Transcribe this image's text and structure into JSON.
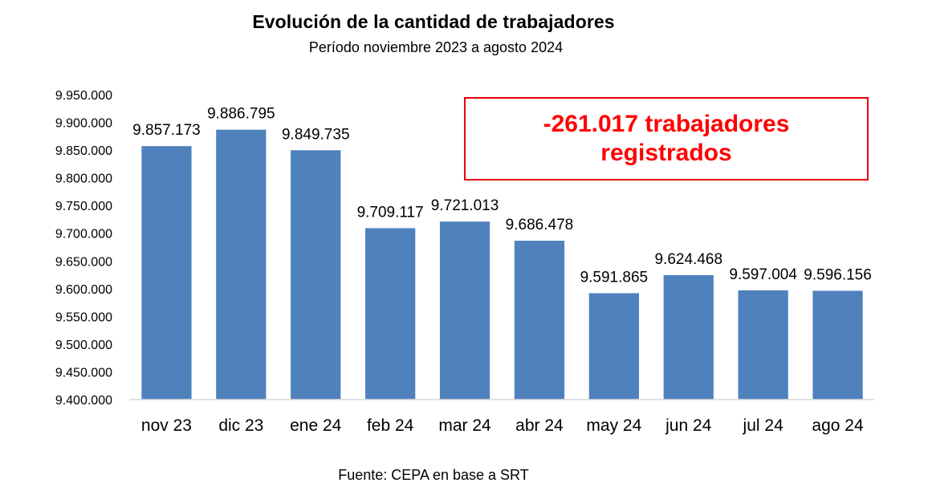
{
  "chart_data": {
    "type": "bar",
    "title": "Evolución de la cantidad de trabajadores",
    "subtitle": "Período noviembre 2023 a agosto 2024",
    "categories": [
      "nov 23",
      "dic 23",
      "ene 24",
      "feb 24",
      "mar 24",
      "abr 24",
      "may 24",
      "jun 24",
      "jul 24",
      "ago 24"
    ],
    "values": [
      9857173,
      9886795,
      9849735,
      9709117,
      9721013,
      9686478,
      9591865,
      9624468,
      9597004,
      9596156
    ],
    "data_labels": [
      "9.857.173",
      "9.886.795",
      "9.849.735",
      "9.709.117",
      "9.721.013",
      "9.686.478",
      "9.591.865",
      "9.624.468",
      "9.597.004",
      "9.596.156"
    ],
    "ylim": [
      9400000,
      9950000
    ],
    "yticks": [
      9400000,
      9450000,
      9500000,
      9550000,
      9600000,
      9650000,
      9700000,
      9750000,
      9800000,
      9850000,
      9900000,
      9950000
    ],
    "ytick_labels": [
      "9.400.000",
      "9.450.000",
      "9.500.000",
      "9.550.000",
      "9.600.000",
      "9.650.000",
      "9.700.000",
      "9.750.000",
      "9.800.000",
      "9.850.000",
      "9.900.000",
      "9.950.000"
    ],
    "xlabel": "",
    "ylabel": "",
    "grid": false,
    "legend": "none",
    "bar_color": "#4f81bd"
  },
  "annotation": {
    "text": "-261.017 trabajadores registrados",
    "color": "#ff0000"
  },
  "source": "Fuente: CEPA en base a SRT"
}
